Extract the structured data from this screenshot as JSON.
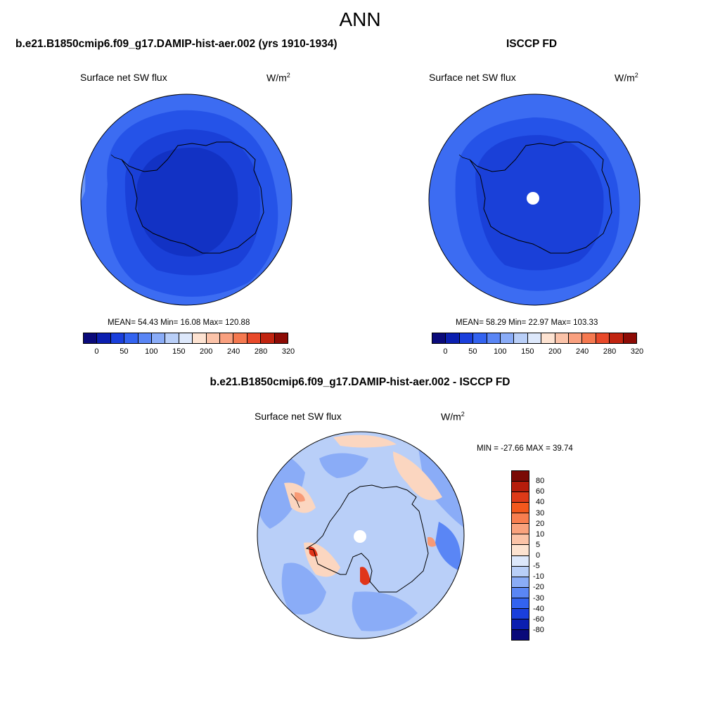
{
  "title": "ANN",
  "panels": {
    "model": {
      "title": "b.e21.B1850cmip6.f09_g17.DAMIP-hist-aer.002 (yrs 1910-1934)",
      "variable": "Surface net SW flux",
      "units": "W/m",
      "units_sup": "2",
      "stats": "MEAN=  54.43  Min=  16.08  Max= 120.88",
      "mean": 54.43,
      "min": 16.08,
      "max": 120.88
    },
    "obs": {
      "title": "ISCCP FD",
      "variable": "Surface net SW flux",
      "units": "W/m",
      "units_sup": "2",
      "stats": "MEAN=  58.29  Min=  22.97  Max= 103.33",
      "mean": 58.29,
      "min": 22.97,
      "max": 103.33
    },
    "diff": {
      "title": "b.e21.B1850cmip6.f09_g17.DAMIP-hist-aer.002 - ISCCP FD",
      "variable": "Surface net SW flux",
      "units": "W/m",
      "units_sup": "2",
      "stats": "MIN = -27.66 MAX =  39.74",
      "min": -27.66,
      "max": 39.74
    }
  },
  "colorbar_abs": {
    "tick_labels": [
      "0",
      "50",
      "100",
      "150",
      "200",
      "240",
      "280",
      "320"
    ],
    "colors": [
      "#0a0a7a",
      "#0b1fb0",
      "#1a3fdc",
      "#3363f0",
      "#5a86f5",
      "#8aacf7",
      "#b9cff8",
      "#dde8fb",
      "#fde3d2",
      "#fbc3a9",
      "#f9a07f",
      "#f57950",
      "#e8492a",
      "#c12410",
      "#8d0b05"
    ]
  },
  "colorbar_diff": {
    "tick_labels": [
      "80",
      "60",
      "40",
      "30",
      "20",
      "10",
      "5",
      "0",
      "-5",
      "-10",
      "-20",
      "-30",
      "-40",
      "-60",
      "-80"
    ],
    "colors": [
      "#7a0a05",
      "#b51d0b",
      "#de3a18",
      "#f3581d",
      "#f87e4f",
      "#f9a27d",
      "#fbc3a7",
      "#fde3d0",
      "#dde8fb",
      "#b9cff8",
      "#8aacf7",
      "#5a86f5",
      "#3363f0",
      "#1a3fdc",
      "#0b1fb0",
      "#0a0a7a"
    ]
  },
  "map_colors": {
    "model_outer": "#3c6cf2",
    "model_band": "#2553e8",
    "model_inner": "#1a40d8",
    "model_core": "#1232c4",
    "model_edge": "#6d97f5",
    "obs_outer": "#3c6cf2",
    "obs_band": "#2553e8",
    "obs_inner": "#1a40d8",
    "obs_edge": "#8aacf7",
    "diff_base": "#b9cff8",
    "diff_mid": "#8aacf7",
    "diff_dark": "#5a86f5",
    "diff_warm": "#fbd6c0",
    "diff_warm2": "#f79a76",
    "diff_hot": "#e0351a"
  }
}
